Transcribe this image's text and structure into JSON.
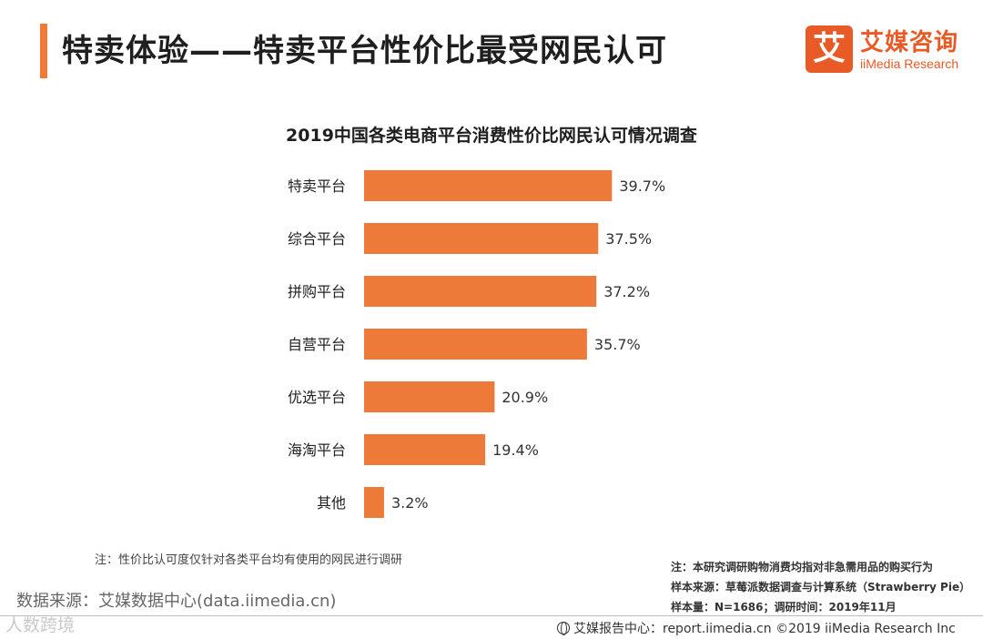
{
  "header": {
    "title": "特卖体验——特卖平台性价比最受网民认可"
  },
  "logo": {
    "mark": "艾",
    "name_cn": "艾媒咨询",
    "name_en": "iiMedia Research"
  },
  "colors": {
    "accent": "#ee7a3a",
    "bar": "#ee7a3a",
    "logo": "#e85a26"
  },
  "chart_data": {
    "type": "bar",
    "orientation": "horizontal",
    "title": "2019中国各类电商平台消费性价比网民认可情况调查",
    "categories": [
      "特卖平台",
      "综合平台",
      "拼购平台",
      "自营平台",
      "优选平台",
      "海淘平台",
      "其他"
    ],
    "values": [
      39.7,
      37.5,
      37.2,
      35.7,
      20.9,
      19.4,
      3.2
    ],
    "value_labels": [
      "39.7%",
      "37.5%",
      "37.2%",
      "35.7%",
      "20.9%",
      "19.4%",
      "3.2%"
    ],
    "unit": "%",
    "grid": false,
    "legend": false
  },
  "notes": {
    "left": "注：性价比认可度仅针对各类平台均有使用的网民进行调研",
    "right_1": "注：本研究调研购物消费均指对非急需用品的购买行为",
    "right_2": "样本来源：草莓派数据调查与计算系统（Strawberry Pie）",
    "right_3": "样本量：N=1686；调研时间：2019年11月"
  },
  "source": "数据来源：艾媒数据中心(data.iimedia.cn)",
  "watermark": "人数跨境",
  "footer": {
    "text": "艾媒报告中心：report.iimedia.cn ©2019 iiMedia Research Inc"
  }
}
